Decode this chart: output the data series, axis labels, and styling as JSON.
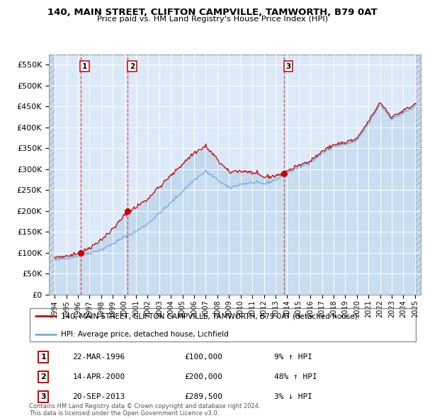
{
  "title": "140, MAIN STREET, CLIFTON CAMPVILLE, TAMWORTH, B79 0AT",
  "subtitle": "Price paid vs. HM Land Registry's House Price Index (HPI)",
  "legend_label_red": "140, MAIN STREET, CLIFTON CAMPVILLE, TAMWORTH, B79 0AT (detached house)",
  "legend_label_blue": "HPI: Average price, detached house, Lichfield",
  "transactions": [
    {
      "num": 1,
      "date": "22-MAR-1996",
      "price": 100000,
      "pct": "9%",
      "dir": "↑",
      "year": 1996.22
    },
    {
      "num": 2,
      "date": "14-APR-2000",
      "price": 200000,
      "pct": "48%",
      "dir": "↑",
      "year": 2000.29
    },
    {
      "num": 3,
      "date": "20-SEP-2013",
      "price": 289500,
      "pct": "3%",
      "dir": "↓",
      "year": 2013.72
    }
  ],
  "copyright_text": "Contains HM Land Registry data © Crown copyright and database right 2024.\nThis data is licensed under the Open Government Licence v3.0.",
  "ylim": [
    0,
    575000
  ],
  "yticks": [
    0,
    50000,
    100000,
    150000,
    200000,
    250000,
    300000,
    350000,
    400000,
    450000,
    500000,
    550000
  ],
  "ytick_labels": [
    "£0",
    "£50K",
    "£100K",
    "£150K",
    "£200K",
    "£250K",
    "£300K",
    "£350K",
    "£400K",
    "£450K",
    "£500K",
    "£550K"
  ],
  "xlim_start": 1993.5,
  "xlim_end": 2025.5,
  "background_color": "#dce9f8",
  "hatch_bg_color": "#c8d8ec",
  "hatch_edge_color": "#aabbd0",
  "grid_color": "#ffffff",
  "red_color": "#cc0000",
  "blue_color": "#7aadd4",
  "blue_fill": "#c8ddf0"
}
